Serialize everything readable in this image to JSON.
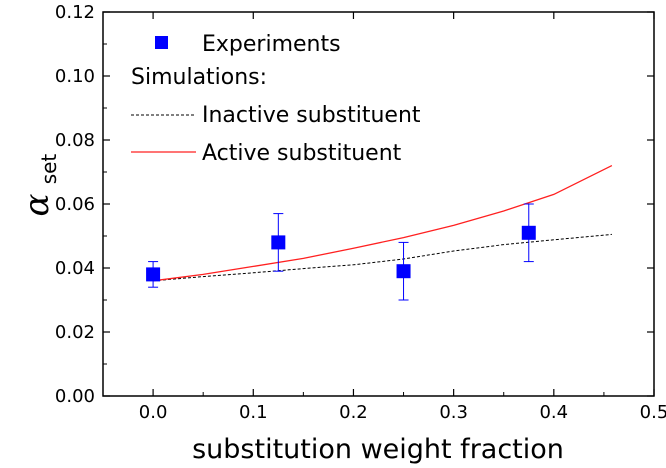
{
  "chart_data": {
    "type": "scatter",
    "xlabel": "substitution weight fraction",
    "ylabel": {
      "main": "α",
      "sub": "set"
    },
    "xlim": [
      -0.05,
      0.5
    ],
    "ylim": [
      0.0,
      0.12
    ],
    "xticks": [
      0.0,
      0.1,
      0.2,
      0.3,
      0.4,
      0.5
    ],
    "xtick_labels": [
      "0.0",
      "0.1",
      "0.2",
      "0.3",
      "0.4",
      "0.5"
    ],
    "yticks": [
      0.0,
      0.02,
      0.04,
      0.06,
      0.08,
      0.1,
      0.12
    ],
    "ytick_labels": [
      "0.00",
      "0.02",
      "0.04",
      "0.06",
      "0.08",
      "0.10",
      "0.12"
    ],
    "grid": false,
    "legend_placement": "top-left",
    "legend": {
      "experiments": "Experiments",
      "simulations_header": "Simulations:",
      "inactive": "Inactive substituent",
      "active": "Active substituent"
    },
    "series": [
      {
        "name": "Experiments",
        "kind": "points-with-errorbars",
        "color": "#0000ff",
        "x": [
          0.0,
          0.125,
          0.25,
          0.375
        ],
        "y": [
          0.038,
          0.048,
          0.039,
          0.051
        ],
        "yerr": [
          0.004,
          0.009,
          0.009,
          0.009
        ]
      },
      {
        "name": "Inactive substituent",
        "kind": "line-dashed",
        "color": "#000000",
        "x": [
          0.0,
          0.05,
          0.1,
          0.15,
          0.2,
          0.25,
          0.3,
          0.35,
          0.4,
          0.458
        ],
        "y": [
          0.036,
          0.0373,
          0.0385,
          0.0398,
          0.041,
          0.0428,
          0.0453,
          0.0473,
          0.0488,
          0.0505
        ]
      },
      {
        "name": "Active substituent",
        "kind": "line",
        "color": "#ff2020",
        "x": [
          0.0,
          0.05,
          0.1,
          0.15,
          0.2,
          0.25,
          0.3,
          0.35,
          0.4,
          0.458
        ],
        "y": [
          0.036,
          0.038,
          0.0405,
          0.043,
          0.0462,
          0.0495,
          0.0533,
          0.0578,
          0.063,
          0.072
        ]
      }
    ]
  }
}
